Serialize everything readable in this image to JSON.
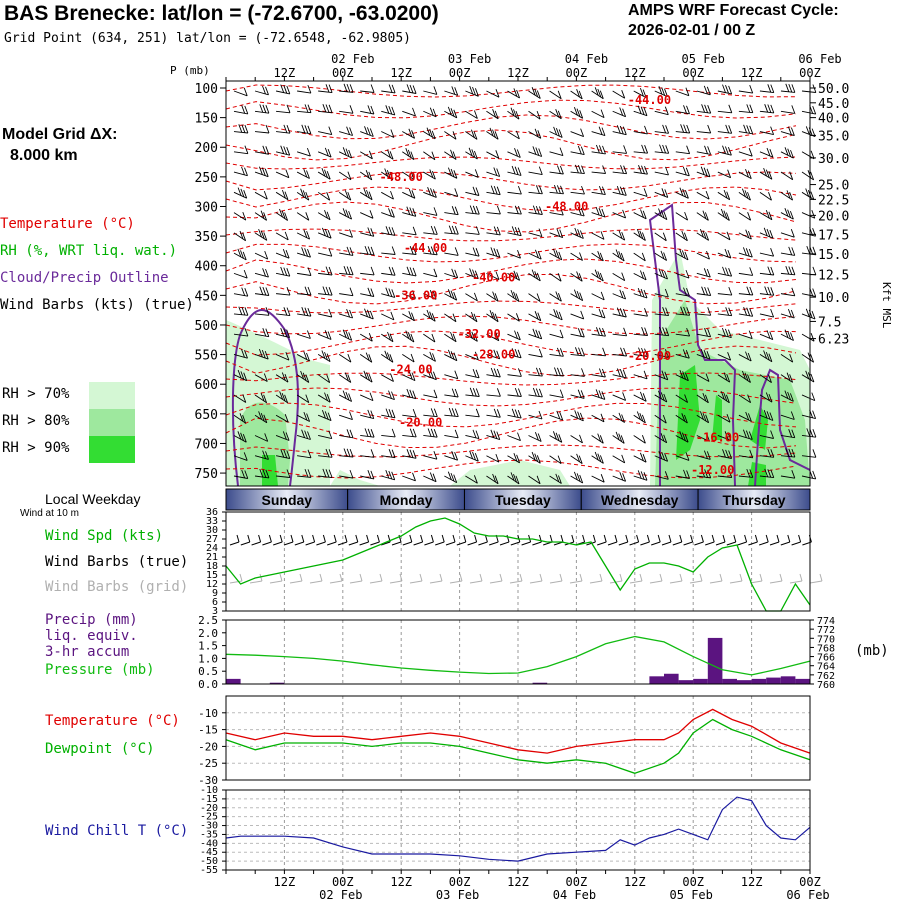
{
  "header": {
    "title": "BAS Brenecke:  lat/lon = (-72.6700, -63.0200)",
    "subtitle": "Grid Point (634, 251) lat/lon = (-72.6548, -62.9805)",
    "cycle_label": "AMPS WRF Forecast Cycle:",
    "cycle_value": "2026-02-01 / 00  Z",
    "grid_label": "Model Grid ΔX:",
    "grid_value": "8.000 km"
  },
  "legend": {
    "temperature": "Temperature (°C)",
    "rh": "RH (%, WRT liq. wat.)",
    "cloud": "Cloud/Precip Outline",
    "wind_barbs": "Wind Barbs (kts) (true)",
    "rh_bins": [
      "RH > 70%",
      "RH > 80%",
      "RH > 90%"
    ],
    "local_weekday": "Local Weekday",
    "wind_10m": "Wind at 10 m",
    "wind_spd": "Wind Spd (kts)",
    "wind_barbs_true": "Wind Barbs (true)",
    "wind_barbs_grid": "Wind Barbs (grid)",
    "precip_lines": [
      "Precip (mm)",
      "liq. equiv.",
      "3-hr accum"
    ],
    "pressure": "Pressure (mb)",
    "pressure_unit": "(mb)",
    "temp2": "Temperature (°C)",
    "dewpoint": "Dewpoint (°C)",
    "wind_chill": "Wind Chill T (°C)"
  },
  "colors": {
    "temperature": "#e00000",
    "rh": "#00b000",
    "cloud": "#6a2a9a",
    "wind": "#000000",
    "wind_grid": "#b0b0b0",
    "precip": "#5b1480",
    "pressure": "#11bb11",
    "wind_chill": "#1a1aa0",
    "rh70": "#d4f7d4",
    "rh80": "#9ee89e",
    "rh90": "#33dd33",
    "day_bar": "#3c4c8c"
  },
  "chart_data": [
    {
      "type": "contour",
      "name": "sounding",
      "x_hours": [
        0,
        120
      ],
      "top_labels": [
        {
          "hr": 12,
          "t": "12Z"
        },
        {
          "hr": 24,
          "t": "00Z"
        },
        {
          "hr": 36,
          "t": "12Z"
        },
        {
          "hr": 48,
          "t": "00Z"
        },
        {
          "hr": 60,
          "t": "12Z"
        },
        {
          "hr": 72,
          "t": "00Z"
        },
        {
          "hr": 84,
          "t": "12Z"
        },
        {
          "hr": 96,
          "t": "00Z"
        },
        {
          "hr": 108,
          "t": "12Z"
        },
        {
          "hr": 120,
          "t": "00Z"
        }
      ],
      "date_labels": [
        {
          "hr": 24,
          "t": "02 Feb"
        },
        {
          "hr": 48,
          "t": "03 Feb"
        },
        {
          "hr": 72,
          "t": "04 Feb"
        },
        {
          "hr": 96,
          "t": "05 Feb"
        },
        {
          "hr": 120,
          "t": "06 Feb"
        }
      ],
      "p_label": "P (mb)",
      "pressure_ticks": [
        100,
        150,
        200,
        250,
        300,
        350,
        400,
        450,
        500,
        550,
        600,
        650,
        700,
        750
      ],
      "height_ticks": [
        {
          "p": 100,
          "t": "50.0"
        },
        {
          "p": 125,
          "t": "45.0"
        },
        {
          "p": 150,
          "t": "40.0"
        },
        {
          "p": 180,
          "t": "35.0"
        },
        {
          "p": 218,
          "t": "30.0"
        },
        {
          "p": 263,
          "t": "25.0"
        },
        {
          "p": 288,
          "t": "22.5"
        },
        {
          "p": 315,
          "t": "20.0"
        },
        {
          "p": 347,
          "t": "17.5"
        },
        {
          "p": 380,
          "t": "15.0"
        },
        {
          "p": 415,
          "t": "12.5"
        },
        {
          "p": 453,
          "t": "10.0"
        },
        {
          "p": 494,
          "t": "7.5"
        },
        {
          "p": 523,
          "t": "6.23"
        }
      ],
      "height_axis_label": "Kft MSL",
      "temp_labels": [
        {
          "hr": 36,
          "p": 250,
          "t": "-48.00"
        },
        {
          "hr": 87,
          "p": 120,
          "t": "-44.00"
        },
        {
          "hr": 70,
          "p": 300,
          "t": "-48.00"
        },
        {
          "hr": 41,
          "p": 370,
          "t": "-44.00"
        },
        {
          "hr": 55,
          "p": 420,
          "t": "-40.00"
        },
        {
          "hr": 39,
          "p": 450,
          "t": "-36.00"
        },
        {
          "hr": 52,
          "p": 515,
          "t": "-32.00"
        },
        {
          "hr": 55,
          "p": 550,
          "t": "-28.00"
        },
        {
          "hr": 87,
          "p": 552,
          "t": "-20.00"
        },
        {
          "hr": 38,
          "p": 575,
          "t": "-24.00"
        },
        {
          "hr": 40,
          "p": 665,
          "t": "-20.00"
        },
        {
          "hr": 101,
          "p": 690,
          "t": "-16.00"
        },
        {
          "hr": 100,
          "p": 745,
          "t": "-12.00"
        }
      ]
    },
    {
      "type": "line",
      "name": "wind-10m",
      "ylim": [
        3,
        36
      ],
      "yticks": [
        36,
        33,
        30,
        27,
        24,
        21,
        18,
        15,
        12,
        9,
        6,
        3
      ],
      "series": [
        {
          "hours": [
            0,
            3,
            6,
            9,
            12,
            15,
            18,
            21,
            24,
            27,
            30,
            33,
            36,
            39,
            42,
            45,
            48,
            51,
            54,
            57,
            60,
            63,
            66,
            69,
            72,
            75,
            78,
            81,
            84,
            87,
            90,
            93,
            96,
            99,
            102,
            105,
            108,
            111,
            114,
            117,
            120
          ],
          "values": [
            18,
            12,
            14,
            15,
            16,
            17,
            18,
            19,
            20,
            22,
            24,
            26,
            28,
            31,
            33,
            34,
            32,
            29,
            28,
            28,
            27,
            27,
            26,
            26,
            25,
            26,
            18,
            10,
            17,
            19,
            19,
            18,
            16,
            21,
            24,
            25,
            12,
            3,
            3,
            12,
            5
          ]
        }
      ]
    },
    {
      "type": "bar+line",
      "name": "precip-pressure",
      "ylim_left": [
        0,
        2.5
      ],
      "yticks_left": [
        "2.5",
        "2.0",
        "1.5",
        "1.0",
        "0.5",
        "0.0"
      ],
      "ylim_right": [
        760,
        774
      ],
      "yticks_right": [
        "774",
        "772",
        "770",
        "768",
        "766",
        "764",
        "762",
        "760"
      ],
      "precip_hours": [
        0,
        9,
        63,
        87,
        90,
        93,
        96,
        99,
        102,
        105,
        108,
        111,
        114,
        117
      ],
      "precip_values": [
        0.2,
        0.05,
        0.05,
        0.3,
        0.4,
        0.15,
        0.2,
        1.8,
        0.2,
        0.15,
        0.2,
        0.25,
        0.3,
        0.2
      ],
      "pressure_hours": [
        0,
        6,
        12,
        18,
        24,
        30,
        36,
        42,
        48,
        54,
        60,
        66,
        72,
        78,
        84,
        90,
        96,
        102,
        108,
        114,
        120
      ],
      "pressure_values": [
        766.5,
        766.3,
        766.0,
        765.6,
        765.0,
        764.2,
        763.5,
        763.0,
        762.6,
        762.3,
        762.4,
        763.8,
        766.0,
        768.8,
        770.4,
        769.2,
        766.0,
        763.1,
        762.0,
        763.4,
        765.0
      ]
    },
    {
      "type": "line",
      "name": "temperature-dewpoint",
      "ylim": [
        -30,
        -5
      ],
      "yticks": [
        -10,
        -15,
        -20,
        -25,
        -30
      ],
      "series": [
        {
          "name": "Temperature",
          "hours": [
            0,
            6,
            12,
            18,
            24,
            30,
            36,
            42,
            48,
            54,
            60,
            66,
            72,
            78,
            84,
            90,
            93,
            96,
            100,
            104,
            108,
            114,
            120
          ],
          "values": [
            -16,
            -18,
            -16,
            -17,
            -17,
            -18,
            -17,
            -16,
            -17,
            -19,
            -21,
            -22,
            -20,
            -19,
            -18,
            -18,
            -16,
            -12,
            -9,
            -12,
            -14,
            -19,
            -22
          ]
        },
        {
          "name": "Dewpoint",
          "hours": [
            0,
            6,
            12,
            18,
            24,
            30,
            36,
            42,
            48,
            54,
            60,
            66,
            72,
            78,
            84,
            90,
            93,
            96,
            100,
            104,
            108,
            114,
            120
          ],
          "values": [
            -18,
            -21,
            -19,
            -19,
            -19,
            -20,
            -19,
            -19,
            -20,
            -22,
            -24,
            -25,
            -24,
            -25,
            -28,
            -25,
            -22,
            -16,
            -12,
            -15,
            -17,
            -21,
            -24
          ]
        }
      ]
    },
    {
      "type": "line",
      "name": "wind-chill",
      "ylim": [
        -55,
        -10
      ],
      "yticks": [
        -10,
        -15,
        -20,
        -25,
        -30,
        -35,
        -40,
        -45,
        -50,
        -55
      ],
      "series": [
        {
          "hours": [
            0,
            3,
            6,
            12,
            18,
            24,
            30,
            36,
            42,
            48,
            54,
            60,
            66,
            72,
            78,
            81,
            84,
            87,
            90,
            93,
            96,
            99,
            102,
            105,
            108,
            111,
            114,
            117,
            120
          ],
          "values": [
            -37,
            -36,
            -36,
            -36,
            -37,
            -42,
            -46,
            -46,
            -46,
            -47,
            -49,
            -50,
            -46,
            -45,
            -44,
            -38,
            -41,
            -37,
            -35,
            -32,
            -35,
            -38,
            -21,
            -14,
            -16,
            -30,
            -37,
            -38,
            -31
          ]
        }
      ]
    }
  ],
  "bottom_axis": {
    "labels": [
      {
        "hr": 12,
        "t": "12Z"
      },
      {
        "hr": 24,
        "t": "00Z"
      },
      {
        "hr": 36,
        "t": "12Z"
      },
      {
        "hr": 48,
        "t": "00Z"
      },
      {
        "hr": 60,
        "t": "12Z"
      },
      {
        "hr": 72,
        "t": "00Z"
      },
      {
        "hr": 84,
        "t": "12Z"
      },
      {
        "hr": 96,
        "t": "00Z"
      },
      {
        "hr": 108,
        "t": "12Z"
      },
      {
        "hr": 120,
        "t": "00Z"
      }
    ],
    "dates": [
      {
        "hr": 24,
        "t": "02 Feb"
      },
      {
        "hr": 48,
        "t": "03 Feb"
      },
      {
        "hr": 72,
        "t": "04 Feb"
      },
      {
        "hr": 96,
        "t": "05 Feb"
      },
      {
        "hr": 120,
        "t": "06 Feb"
      }
    ]
  },
  "weekdays": [
    {
      "t": "Sunday",
      "start": 0,
      "end": 25
    },
    {
      "t": "Monday",
      "start": 25,
      "end": 49
    },
    {
      "t": "Tuesday",
      "start": 49,
      "end": 73
    },
    {
      "t": "Wednesday",
      "start": 73,
      "end": 97
    },
    {
      "t": "Thursday",
      "start": 97,
      "end": 120
    }
  ]
}
